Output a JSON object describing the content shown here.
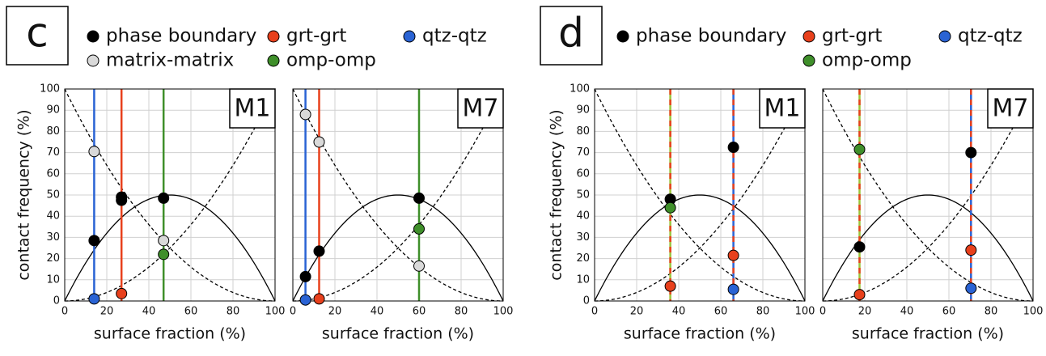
{
  "chart_data": [
    {
      "type": "scatter",
      "label": "c",
      "ylabel": "contact frequency (%)",
      "ylim": [
        0,
        100
      ],
      "yticks": [
        0,
        10,
        20,
        30,
        40,
        50,
        60,
        70,
        80,
        90,
        100
      ],
      "grid": true,
      "series": [
        {
          "name": "phase boundary",
          "color": "#000000"
        },
        {
          "name": "matrix-matrix",
          "color": "#d9d9d9"
        },
        {
          "name": "grt-grt",
          "color": "#e8401c"
        },
        {
          "name": "omp-omp",
          "color": "#3f8f2a"
        },
        {
          "name": "qtz-qtz",
          "color": "#2a63d4"
        }
      ],
      "subplots": [
        {
          "title": "M1",
          "xlabel": "surface fraction (%)",
          "xlim": [
            0,
            100
          ],
          "xticks": [
            0,
            20,
            40,
            60,
            80,
            100
          ],
          "vlines": [
            {
              "x": 14,
              "colors": [
                "#2a63d4"
              ]
            },
            {
              "x": 27,
              "colors": [
                "#e8401c"
              ]
            },
            {
              "x": 47,
              "colors": [
                "#3f8f2a"
              ]
            }
          ],
          "series": [
            {
              "x": [
                14,
                27,
                27,
                47
              ],
              "values": [
                28.5,
                47.5,
                49,
                48.5
              ]
            },
            {
              "x": [
                14,
                47
              ],
              "values": [
                70.5,
                28.5
              ]
            },
            {
              "x": [
                27
              ],
              "values": [
                3.5
              ]
            },
            {
              "x": [
                47
              ],
              "values": [
                22
              ]
            },
            {
              "x": [
                14
              ],
              "values": [
                1
              ]
            }
          ]
        },
        {
          "title": "M7",
          "xlabel": "surface fraction (%)",
          "xlim": [
            0,
            100
          ],
          "xticks": [
            0,
            20,
            40,
            60,
            80,
            100
          ],
          "vlines": [
            {
              "x": 6,
              "colors": [
                "#2a63d4"
              ]
            },
            {
              "x": 12.5,
              "colors": [
                "#e8401c"
              ]
            },
            {
              "x": 60,
              "colors": [
                "#3f8f2a"
              ]
            }
          ],
          "series": [
            {
              "x": [
                6,
                12.5,
                60
              ],
              "values": [
                11.5,
                23.5,
                48.5
              ]
            },
            {
              "x": [
                6,
                12.5,
                60
              ],
              "values": [
                88,
                75,
                16.5
              ]
            },
            {
              "x": [
                12.5
              ],
              "values": [
                1
              ]
            },
            {
              "x": [
                60
              ],
              "values": [
                34
              ]
            },
            {
              "x": [
                6
              ],
              "values": [
                0.5
              ]
            }
          ]
        }
      ]
    },
    {
      "type": "scatter",
      "label": "d",
      "ylabel": "contact frequency (%)",
      "ylim": [
        0,
        100
      ],
      "yticks": [
        0,
        10,
        20,
        30,
        40,
        50,
        60,
        70,
        80,
        90,
        100
      ],
      "grid": true,
      "series": [
        {
          "name": "phase boundary",
          "color": "#000000"
        },
        {
          "name": "grt-grt",
          "color": "#e8401c"
        },
        {
          "name": "omp-omp",
          "color": "#3f8f2a"
        },
        {
          "name": "qtz-qtz",
          "color": "#2a63d4"
        }
      ],
      "subplots": [
        {
          "title": "M1",
          "xlabel": "surface fraction (%)",
          "xlim": [
            0,
            100
          ],
          "xticks": [
            0,
            20,
            40,
            60,
            80,
            100
          ],
          "vlines": [
            {
              "x": 36,
              "colors": [
                "#9bc43a",
                "#e8401c"
              ]
            },
            {
              "x": 66,
              "colors": [
                "#2a63d4",
                "#e8401c"
              ]
            }
          ],
          "series": [
            {
              "x": [
                36,
                66
              ],
              "values": [
                48,
                72.5
              ]
            },
            {
              "x": [
                36,
                66
              ],
              "values": [
                7,
                21.5
              ]
            },
            {
              "x": [
                36
              ],
              "values": [
                44
              ]
            },
            {
              "x": [
                66
              ],
              "values": [
                5.5
              ]
            }
          ]
        },
        {
          "title": "M7",
          "xlabel": "surface fraction (%)",
          "xlim": [
            0,
            100
          ],
          "xticks": [
            0,
            20,
            40,
            60,
            80,
            100
          ],
          "vlines": [
            {
              "x": 17.5,
              "colors": [
                "#9bc43a",
                "#e8401c"
              ]
            },
            {
              "x": 70.5,
              "colors": [
                "#2a63d4",
                "#e8401c"
              ]
            }
          ],
          "series": [
            {
              "x": [
                17.5,
                70.5
              ],
              "values": [
                25.5,
                70
              ]
            },
            {
              "x": [
                17.5,
                70.5
              ],
              "values": [
                3,
                24
              ]
            },
            {
              "x": [
                17.5
              ],
              "values": [
                71.5
              ]
            },
            {
              "x": [
                70.5
              ],
              "values": [
                6
              ]
            }
          ]
        }
      ]
    }
  ]
}
